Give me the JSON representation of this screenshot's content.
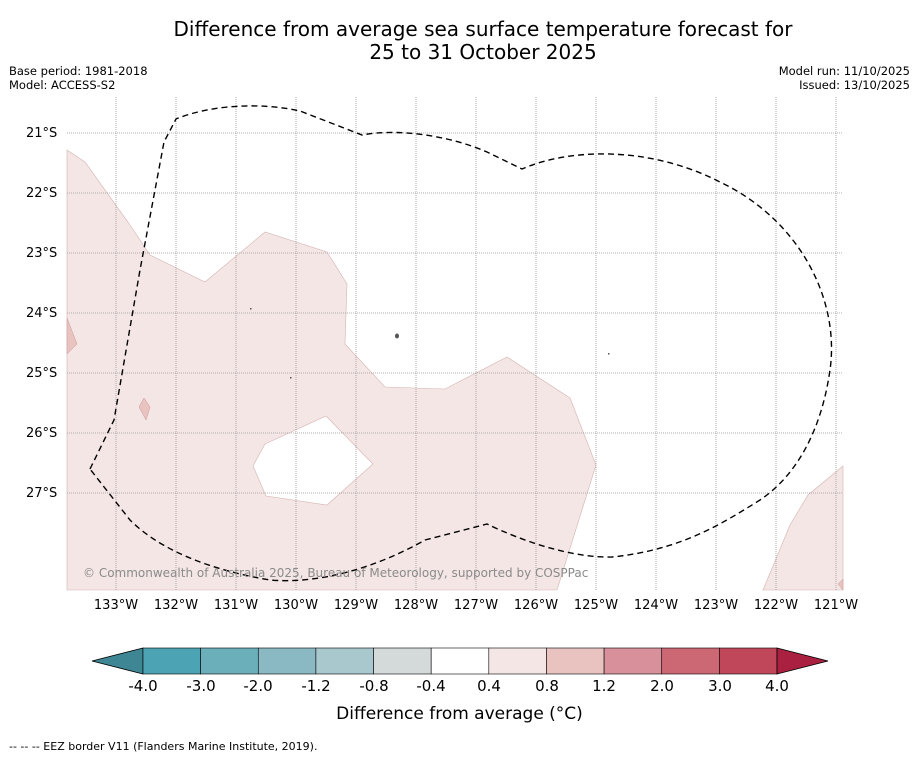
{
  "title": {
    "line1": "Difference from average sea surface temperature forecast for",
    "line2": "25 to 31 October 2025"
  },
  "meta_left": {
    "base_period": "Base period: 1981-2018",
    "model": "Model: ACCESS-S2"
  },
  "meta_right": {
    "model_run": "Model run: 11/10/2025",
    "issued": "Issued: 13/10/2025"
  },
  "map": {
    "latitude_labels": [
      "21°S",
      "22°S",
      "23°S",
      "24°S",
      "25°S",
      "26°S",
      "27°S"
    ],
    "longitude_labels": [
      "133°W",
      "132°W",
      "131°W",
      "130°W",
      "129°W",
      "128°W",
      "127°W",
      "126°W",
      "125°W",
      "124°W",
      "123°W",
      "122°W",
      "121°W"
    ],
    "copyright": "© Commonwealth of Australia 2025, Bureau of Meteorology, supported by COSPPac",
    "eez_border_label": "EEZ border"
  },
  "colorbar": {
    "tick_labels": [
      "-4.0",
      "-3.0",
      "-2.0",
      "-1.2",
      "-0.8",
      "-0.4",
      "0.4",
      "0.8",
      "1.2",
      "2.0",
      "3.0",
      "4.0"
    ],
    "colors": [
      "#4ba3b3",
      "#6bafbb",
      "#8ab9c3",
      "#a9c8cd",
      "#d4d9d9",
      "#ffffff",
      "#f4e6e5",
      "#e8c3bf",
      "#d8919a",
      "#cc6873",
      "#c0475a"
    ],
    "under_color": "#3f8694",
    "over_color": "#a92040",
    "title": "Difference from average (°C)"
  },
  "anomaly_fill_color": "#f4e6e5",
  "footnote": "--  --  -- EEZ border V11 (Flanders Marine Institute, 2019)."
}
